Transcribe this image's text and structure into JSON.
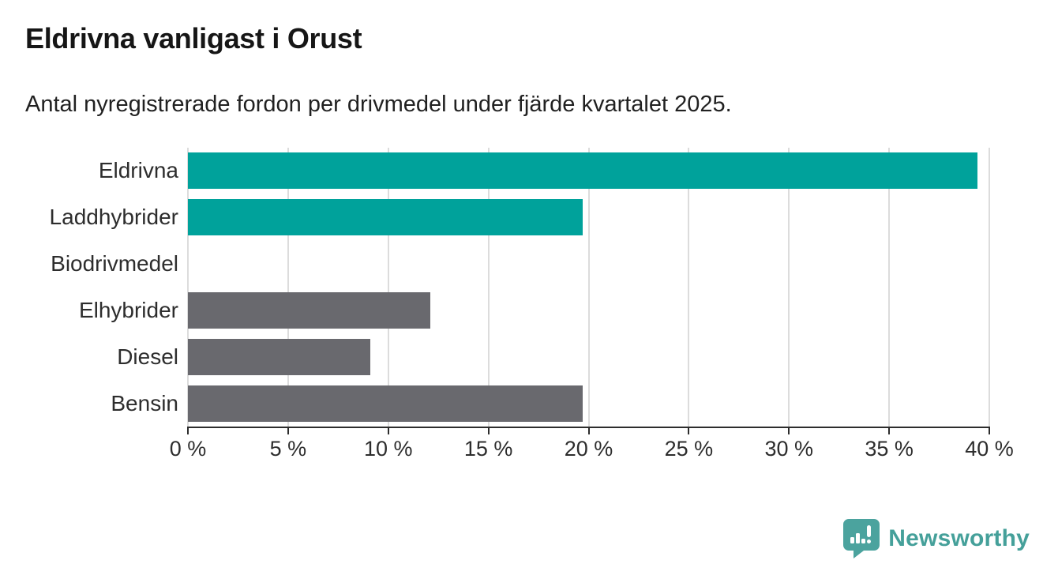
{
  "header": {
    "title": "Eldrivna vanligast i Orust",
    "subtitle": "Antal nyregistrerade fordon per drivmedel under fjärde kvartalet 2025."
  },
  "chart_data": {
    "type": "bar",
    "orientation": "horizontal",
    "title": "Eldrivna vanligast i Orust",
    "subtitle": "Antal nyregistrerade fordon per drivmedel under fjärde kvartalet 2025.",
    "categories": [
      "Eldrivna",
      "Laddhybrider",
      "Biodrivmedel",
      "Elhybrider",
      "Diesel",
      "Bensin"
    ],
    "values": [
      39.4,
      19.7,
      0,
      12.1,
      9.1,
      19.7
    ],
    "unit": "%",
    "bar_colors": [
      "#00a29b",
      "#00a29b",
      "#69696e",
      "#69696e",
      "#69696e",
      "#69696e"
    ],
    "highlight_color": "#00a29b",
    "default_color": "#69696e",
    "xlabel": "",
    "ylabel": "",
    "xlim": [
      0,
      40
    ],
    "xticks": [
      0,
      5,
      10,
      15,
      20,
      25,
      30,
      35,
      40
    ],
    "xtick_labels": [
      "0 %",
      "5 %",
      "10 %",
      "15 %",
      "20 %",
      "25 %",
      "30 %",
      "35 %",
      "40 %"
    ],
    "grid": true,
    "gridline_color": "#dcdcdc",
    "axis_color": "#2d2d2d",
    "legend": "none",
    "data_labels": "none"
  },
  "footer": {
    "brand": "Newsworthy",
    "brand_color": "#45a09a",
    "brand_icon": "newsworthy-speech-bubble-barchart-icon"
  }
}
